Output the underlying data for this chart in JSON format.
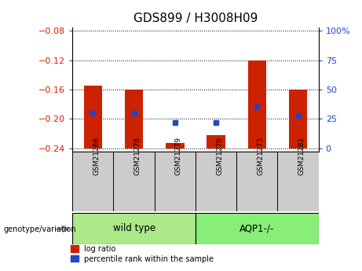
{
  "title": "GDS899 / H3008H09",
  "samples": [
    "GSM21266",
    "GSM21276",
    "GSM21279",
    "GSM21270",
    "GSM21273",
    "GSM21282"
  ],
  "log_ratio": [
    -0.155,
    -0.16,
    -0.233,
    -0.222,
    -0.12,
    -0.16
  ],
  "percentile_rank": [
    30,
    30,
    22,
    22,
    35,
    28
  ],
  "ylim_left": [
    -0.245,
    -0.075
  ],
  "yticks_left": [
    -0.08,
    -0.12,
    -0.16,
    -0.2,
    -0.24
  ],
  "yticks_right": [
    0,
    25,
    50,
    75,
    100
  ],
  "ytick_labels_right": [
    "0",
    "25",
    "50",
    "75",
    "100%"
  ],
  "bar_color": "#cc2200",
  "dot_color": "#2244cc",
  "wildtype_color": "#aae888",
  "aqp1_color": "#88ee77",
  "sample_box_color": "#cccccc",
  "group_label": "genotype/variation",
  "xlabel_wildtype": "wild type",
  "xlabel_aqp1": "AQP1-/-",
  "legend_log": "log ratio",
  "legend_pct": "percentile rank within the sample",
  "baseline": -0.24,
  "bar_width": 0.45,
  "n_wildtype": 3,
  "n_aqp1": 3
}
